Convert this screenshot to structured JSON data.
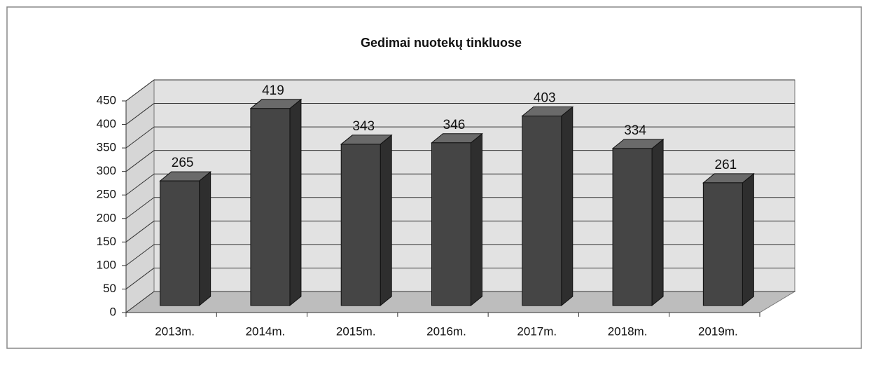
{
  "chart_data": {
    "type": "bar",
    "title": "Gedimai nuotekų tinkluose",
    "categories": [
      "2013m.",
      "2014m.",
      "2015m.",
      "2016m.",
      "2017m.",
      "2018m.",
      "2019m."
    ],
    "values": [
      265,
      419,
      343,
      346,
      403,
      334,
      261
    ],
    "color": "#454545",
    "ylim": [
      0,
      450
    ],
    "yticks": [
      0,
      50,
      100,
      150,
      200,
      250,
      300,
      350,
      400,
      450
    ],
    "grid": true
  }
}
